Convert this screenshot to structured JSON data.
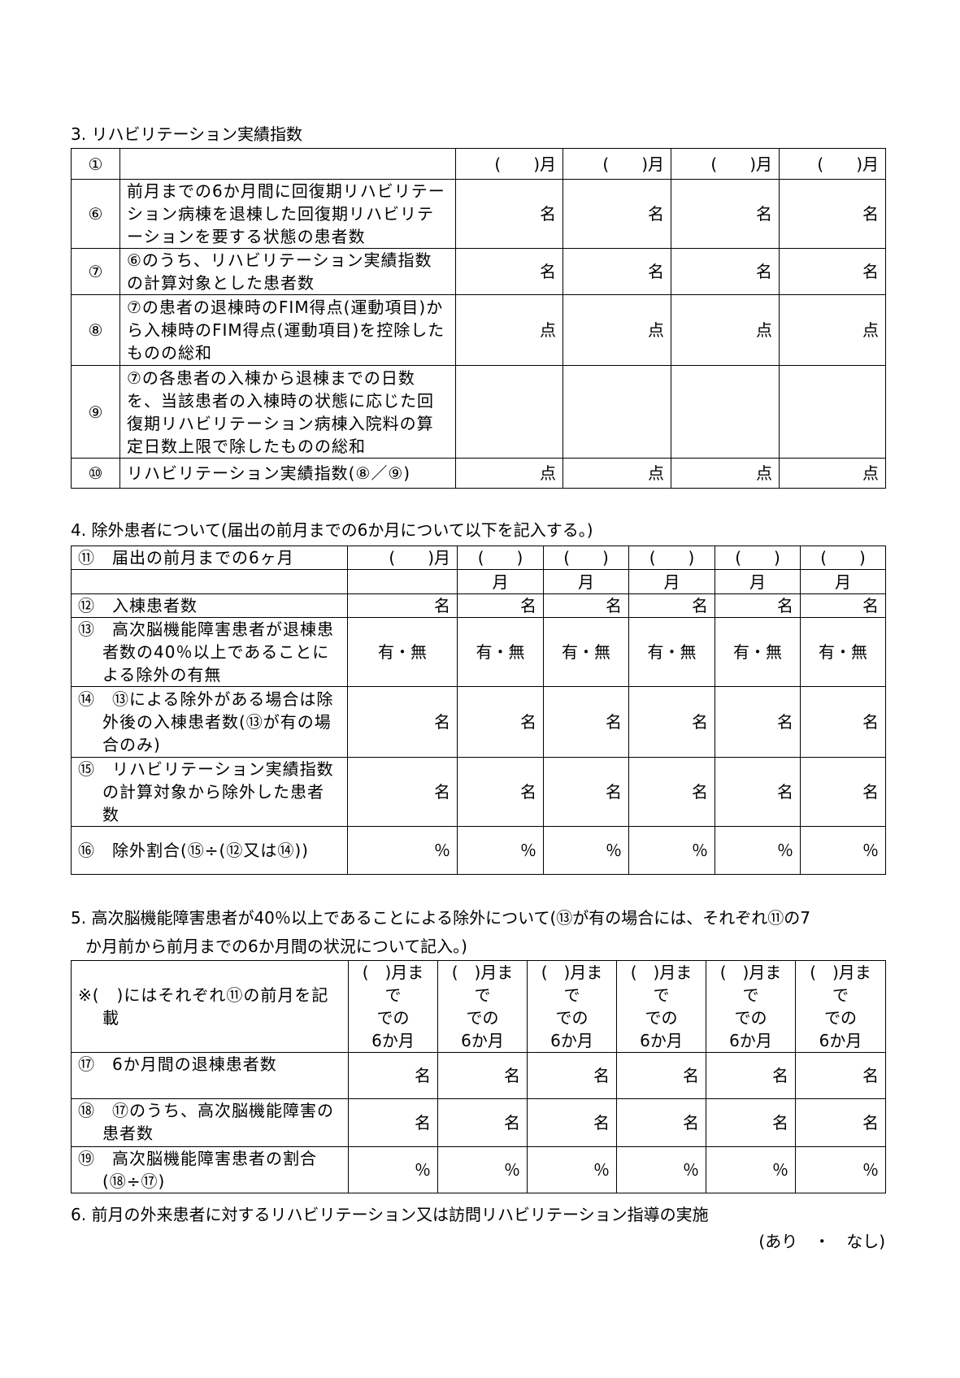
{
  "section3": {
    "title": "3. リハビリテーション実績指数",
    "month_header": [
      "(　　)月",
      "(　　)月",
      "(　　)月",
      "(　　)月"
    ],
    "rows": [
      {
        "num": "①",
        "label": ""
      },
      {
        "num": "⑥",
        "label": "前月までの6か月間に回復期リハビリテーション病棟を退棟した回復期リハビリテーションを要する状態の患者数",
        "unit": "名"
      },
      {
        "num": "⑦",
        "label": "⑥のうち、リハビリテーション実績指数の計算対象とした患者数",
        "unit": "名"
      },
      {
        "num": "⑧",
        "label": "⑦の患者の退棟時のFIM得点(運動項目)から入棟時のFIM得点(運動項目)を控除したものの総和",
        "unit": "点"
      },
      {
        "num": "⑨",
        "label": "⑦の各患者の入棟から退棟までの日数を、当該患者の入棟時の状態に応じた回復期リハビリテーション病棟入院料の算定日数上限で除したものの総和",
        "unit": ""
      },
      {
        "num": "⑩",
        "label": "リハビリテーション実績指数(⑧／⑨)",
        "unit": "点"
      }
    ]
  },
  "section4": {
    "title": "4. 除外患者について(届出の前月までの6か月について以下を記入する。)",
    "header_label": "⑪　届出の前月までの6ヶ月",
    "first_month": "(　　)月",
    "paren": "(　　)",
    "month": "月",
    "rows": [
      {
        "label": "⑫　入棟患者数",
        "unit": "名"
      },
      {
        "label": "⑬　高次脳機能障害患者が退棟患者数の40％以上であることによる除外の有無",
        "unit": "有・無"
      },
      {
        "label": "⑭　⑬による除外がある場合は除外後の入棟患者数(⑬が有の場合のみ)",
        "unit": "名"
      },
      {
        "label": "⑮　リハビリテーション実績指数の計算対象から除外した患者数",
        "unit": "名"
      },
      {
        "label": "⑯　除外割合(⑮÷(⑫又は⑭))",
        "unit": "％"
      }
    ]
  },
  "section5": {
    "title_line1": "5. 高次脳機能障害患者が40％以上であることによる除外について(⑬が有の場合には、それぞれ⑪の7",
    "title_line2": "か月前から前月までの6か月間の状況について記入。)",
    "header_label": "※(　)にはそれぞれ⑪の前月を記載",
    "col_header": [
      "(　)月まで",
      "での",
      "6か月"
    ],
    "rows": [
      {
        "label": "⑰　6か月間の退棟患者数",
        "unit": "名"
      },
      {
        "label": "⑱　⑰のうち、高次脳機能障害の患者数",
        "unit": "名"
      },
      {
        "label": "⑲　高次脳機能障害患者の割合(⑱÷⑰)",
        "unit": "％"
      }
    ]
  },
  "section6": {
    "title": "6. 前月の外来患者に対するリハビリテーション又は訪問リハビリテーション指導の実施",
    "choice": "(あり　・　なし)"
  }
}
